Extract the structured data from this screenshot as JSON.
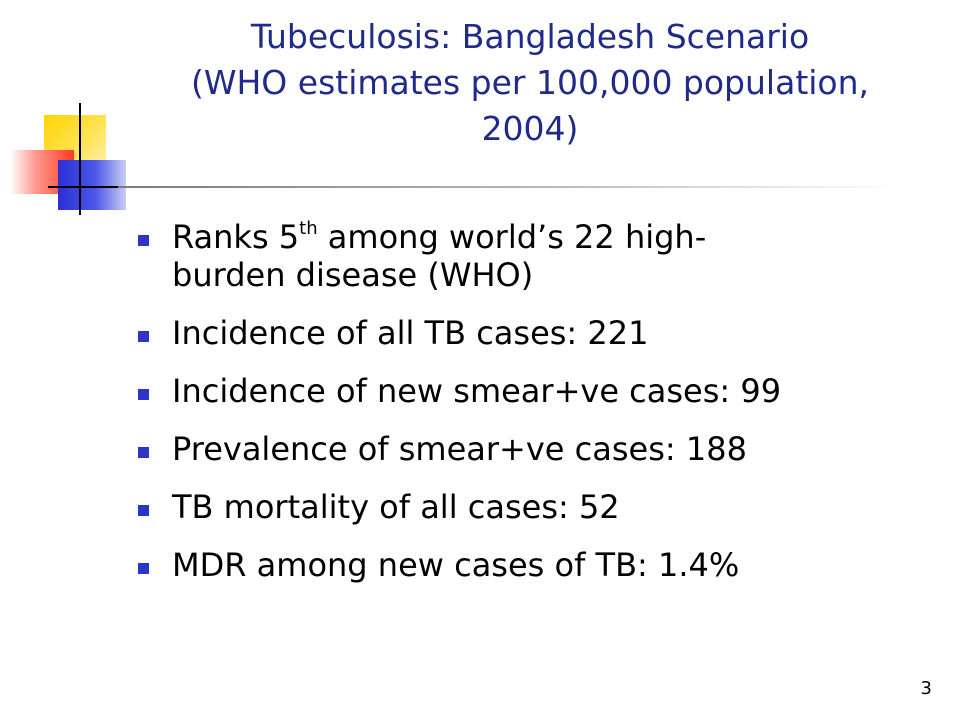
{
  "title": {
    "line1": "Tubeculosis: Bangladesh Scenario",
    "line2": "(WHO estimates per 100,000 population,",
    "line3": "2004)"
  },
  "bullets": [
    {
      "part1": "Ranks 5",
      "sup": "th",
      "part2": " among world’s 22 high-",
      "line2": "burden disease (WHO)"
    },
    {
      "text": "Incidence of all TB cases: 221"
    },
    {
      "text": "Incidence of new smear+ve cases: 99"
    },
    {
      "text": "Prevalence of smear+ve cases: 188"
    },
    {
      "text": "TB mortality of all cases: 52"
    },
    {
      "text": "MDR among new cases of TB: 1.4%"
    }
  ],
  "page_number": "3",
  "colors": {
    "title": "#1f2a8a",
    "bullet": "#2b36c8",
    "accent_yellow": "#ffd400",
    "accent_blue": "#2a2fd6",
    "accent_red": "#ff3a22"
  }
}
